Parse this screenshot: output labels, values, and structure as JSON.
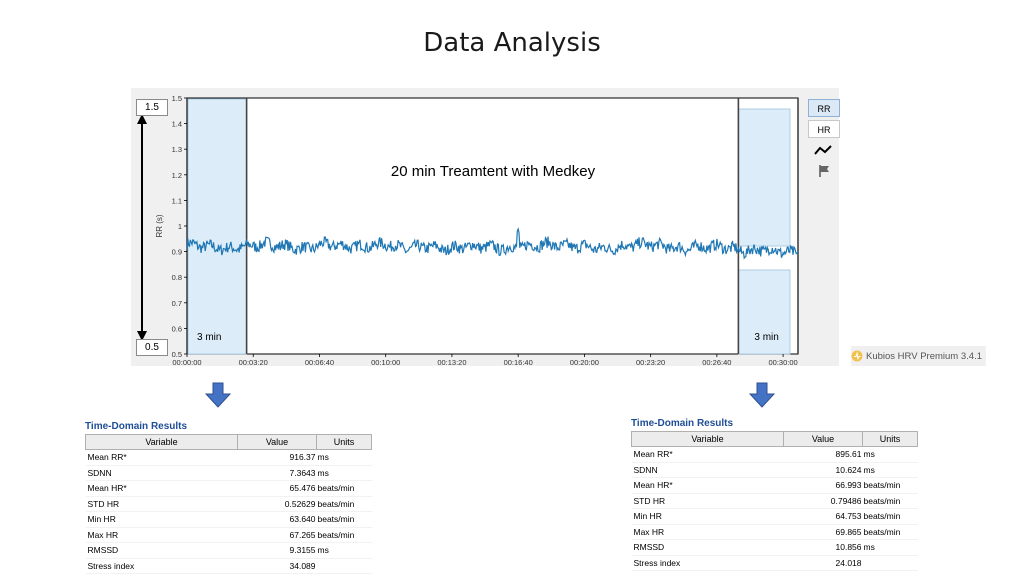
{
  "slide_title": "Data Analysis",
  "chart_data": {
    "type": "line",
    "annotation": "20 min Treamtent with Medkey",
    "ylabel": "RR (s)",
    "ylim": [
      0.5,
      1.5
    ],
    "y_ticks": [
      "0.5",
      "0.6",
      "0.7",
      "0.8",
      "0.9",
      "1",
      "1.1",
      "1.2",
      "1.3",
      "1.4",
      "1.5"
    ],
    "x_ticks": [
      "00:00:00",
      "00:03:20",
      "00:06:40",
      "00:10:00",
      "00:13:20",
      "00:16:40",
      "00:20:00",
      "00:23:20",
      "00:26:40",
      "00:30:00"
    ],
    "x_range_seconds": [
      0,
      1845
    ],
    "y_range_boxes": {
      "top": "1.5",
      "bottom": "0.5"
    },
    "series": [
      {
        "color": "#1f77b4",
        "x_seconds": [
          0,
          60,
          120,
          180,
          240,
          300,
          360,
          420,
          480,
          540,
          600,
          660,
          720,
          780,
          840,
          900,
          960,
          1020,
          1080,
          1140,
          1200,
          1260,
          1320,
          1380,
          1440,
          1500,
          1560,
          1620,
          1680,
          1740,
          1800,
          1845
        ],
        "y": [
          0.93,
          0.92,
          0.91,
          0.92,
          0.93,
          0.92,
          0.91,
          0.93,
          0.92,
          0.92,
          0.93,
          0.91,
          0.92,
          0.91,
          0.92,
          0.92,
          0.91,
          0.92,
          0.93,
          0.92,
          0.92,
          0.91,
          0.92,
          0.93,
          0.92,
          0.91,
          0.92,
          0.92,
          0.9,
          0.91,
          0.9,
          0.89
        ]
      }
    ],
    "segments": [
      {
        "label": "3 min",
        "from_seconds": 0,
        "to_seconds": 180
      },
      {
        "label": "3 min",
        "from_seconds": 1665,
        "to_seconds": 1845
      }
    ]
  },
  "side_buttons": {
    "rr": "RR",
    "hr": "HR"
  },
  "brand": "Kubios HRV Premium 3.4.1",
  "results_before": {
    "title": "Time-Domain Results",
    "headers": [
      "Variable",
      "Value",
      "Units"
    ],
    "rows": [
      {
        "variable": "Mean RR*",
        "value": "916.37",
        "unit": "ms"
      },
      {
        "variable": "SDNN",
        "value": "7.3643",
        "unit": "ms"
      },
      {
        "variable": "Mean HR*",
        "value": "65.476",
        "unit": "beats/min"
      },
      {
        "variable": "STD HR",
        "value": "0.52629",
        "unit": "beats/min"
      },
      {
        "variable": "Min HR",
        "value": "63.640",
        "unit": "beats/min"
      },
      {
        "variable": "Max HR",
        "value": "67.265",
        "unit": "beats/min"
      },
      {
        "variable": "RMSSD",
        "value": "9.3155",
        "unit": "ms"
      },
      {
        "variable": "Stress index",
        "value": "34.089",
        "unit": ""
      }
    ]
  },
  "results_after": {
    "title": "Time-Domain Results",
    "headers": [
      "Variable",
      "Value",
      "Units"
    ],
    "rows": [
      {
        "variable": "Mean RR*",
        "value": "895.61",
        "unit": "ms"
      },
      {
        "variable": "SDNN",
        "value": "10.624",
        "unit": "ms"
      },
      {
        "variable": "Mean HR*",
        "value": "66.993",
        "unit": "beats/min"
      },
      {
        "variable": "STD HR",
        "value": "0.79486",
        "unit": "beats/min"
      },
      {
        "variable": "Min HR",
        "value": "64.753",
        "unit": "beats/min"
      },
      {
        "variable": "Max HR",
        "value": "69.865",
        "unit": "beats/min"
      },
      {
        "variable": "RMSSD",
        "value": "10.856",
        "unit": "ms"
      },
      {
        "variable": "Stress index",
        "value": "24.018",
        "unit": ""
      }
    ]
  },
  "colors": {
    "series": "#1f77b4",
    "segment_fill": "#dcecf8",
    "arrow": "#4472c4",
    "results_title": "#1f4e96"
  },
  "icons": [
    "poincare-line-icon",
    "flag-icon",
    "kubios-logo-icon",
    "down-arrow-icon"
  ]
}
